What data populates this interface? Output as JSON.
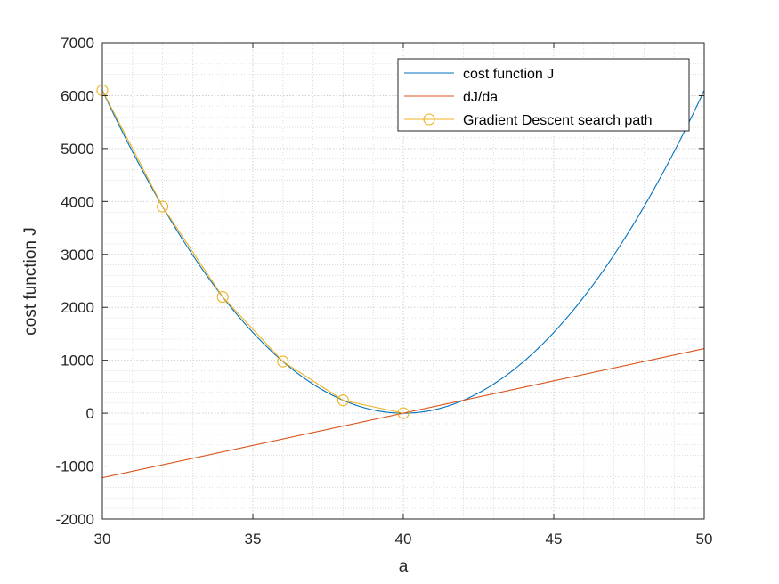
{
  "chart_data": {
    "type": "line",
    "title": "",
    "xlabel": "a",
    "ylabel": "cost function J",
    "xlim": [
      30,
      50
    ],
    "ylim": [
      -2000,
      7000
    ],
    "xticks": [
      "30",
      "35",
      "40",
      "45",
      "50"
    ],
    "yticks": [
      "-2000",
      "-1000",
      "0",
      "1000",
      "2000",
      "3000",
      "4000",
      "5000",
      "6000",
      "7000"
    ],
    "grid": true,
    "minor_grid": true,
    "legend_position": "top-right",
    "series": [
      {
        "name": "cost function J",
        "color": "#0072BD",
        "style": "line",
        "x": [
          30,
          31,
          32,
          33,
          34,
          35,
          36,
          37,
          38,
          39,
          40,
          41,
          42,
          43,
          44,
          45,
          46,
          47,
          48,
          49,
          50
        ],
        "y": [
          6100,
          4941,
          3904,
          2989,
          2196,
          1525,
          976,
          549,
          244,
          61,
          0,
          61,
          244,
          549,
          976,
          1525,
          2196,
          2989,
          3904,
          4941,
          6100
        ]
      },
      {
        "name": "dJ/da",
        "color": "#D95319",
        "style": "line",
        "x": [
          30,
          50
        ],
        "y": [
          -1220,
          1220
        ]
      },
      {
        "name": "Gradient Descent search path",
        "color": "#EDB120",
        "style": "line-circle-markers",
        "x": [
          30,
          32,
          34,
          36,
          38,
          40
        ],
        "y": [
          6100,
          3904,
          2196,
          976,
          244,
          0
        ]
      }
    ]
  }
}
